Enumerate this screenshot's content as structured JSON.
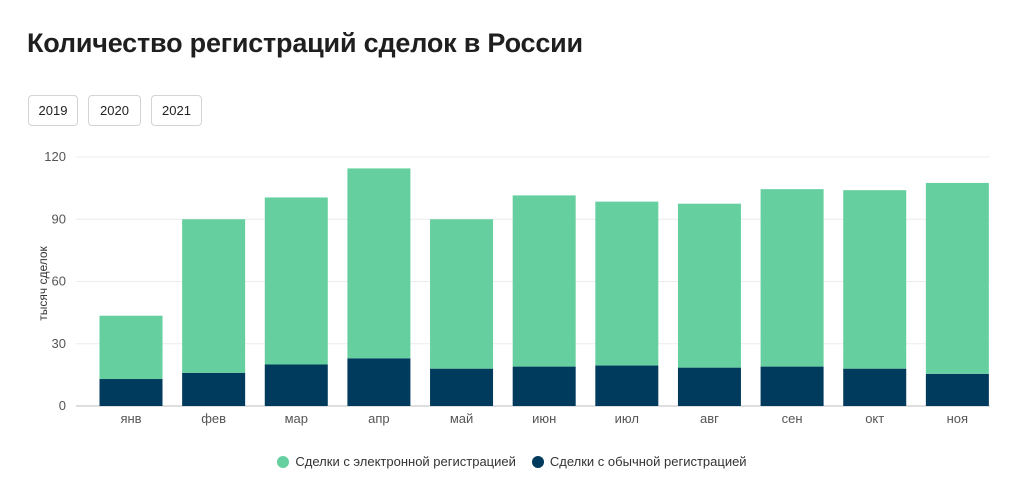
{
  "title": "Количество регистраций сделок в России",
  "year_tabs": [
    "2019",
    "2020",
    "2021"
  ],
  "colors": {
    "electronic": "#66cf9f",
    "regular": "#003a5c",
    "grid": "#ececec",
    "axis_text": "#555555"
  },
  "chart_data": {
    "type": "bar",
    "stacked": true,
    "title": "Количество регистраций сделок в России",
    "xlabel": "",
    "ylabel": "тысяч сделок",
    "ylim": [
      0,
      120
    ],
    "yticks": [
      0,
      30,
      60,
      90,
      120
    ],
    "grid": true,
    "legend_position": "bottom",
    "categories": [
      "янв",
      "фев",
      "мар",
      "апр",
      "май",
      "июн",
      "июл",
      "авг",
      "сен",
      "окт",
      "ноя"
    ],
    "series": [
      {
        "name": "Сделки с обычной регистрацией",
        "color": "#003a5c",
        "values": [
          13,
          16,
          20,
          23,
          18,
          19,
          19.5,
          18.5,
          19,
          18,
          15.5
        ]
      },
      {
        "name": "Сделки с электронной регистрацией",
        "color": "#66cf9f",
        "values": [
          30.5,
          74,
          80.5,
          91.5,
          72,
          82.5,
          79,
          79,
          85.5,
          86,
          92
        ]
      }
    ]
  },
  "legend": [
    {
      "label": "Сделки с электронной регистрацией",
      "color": "#66cf9f"
    },
    {
      "label": "Сделки с обычной регистрацией",
      "color": "#003a5c"
    }
  ]
}
